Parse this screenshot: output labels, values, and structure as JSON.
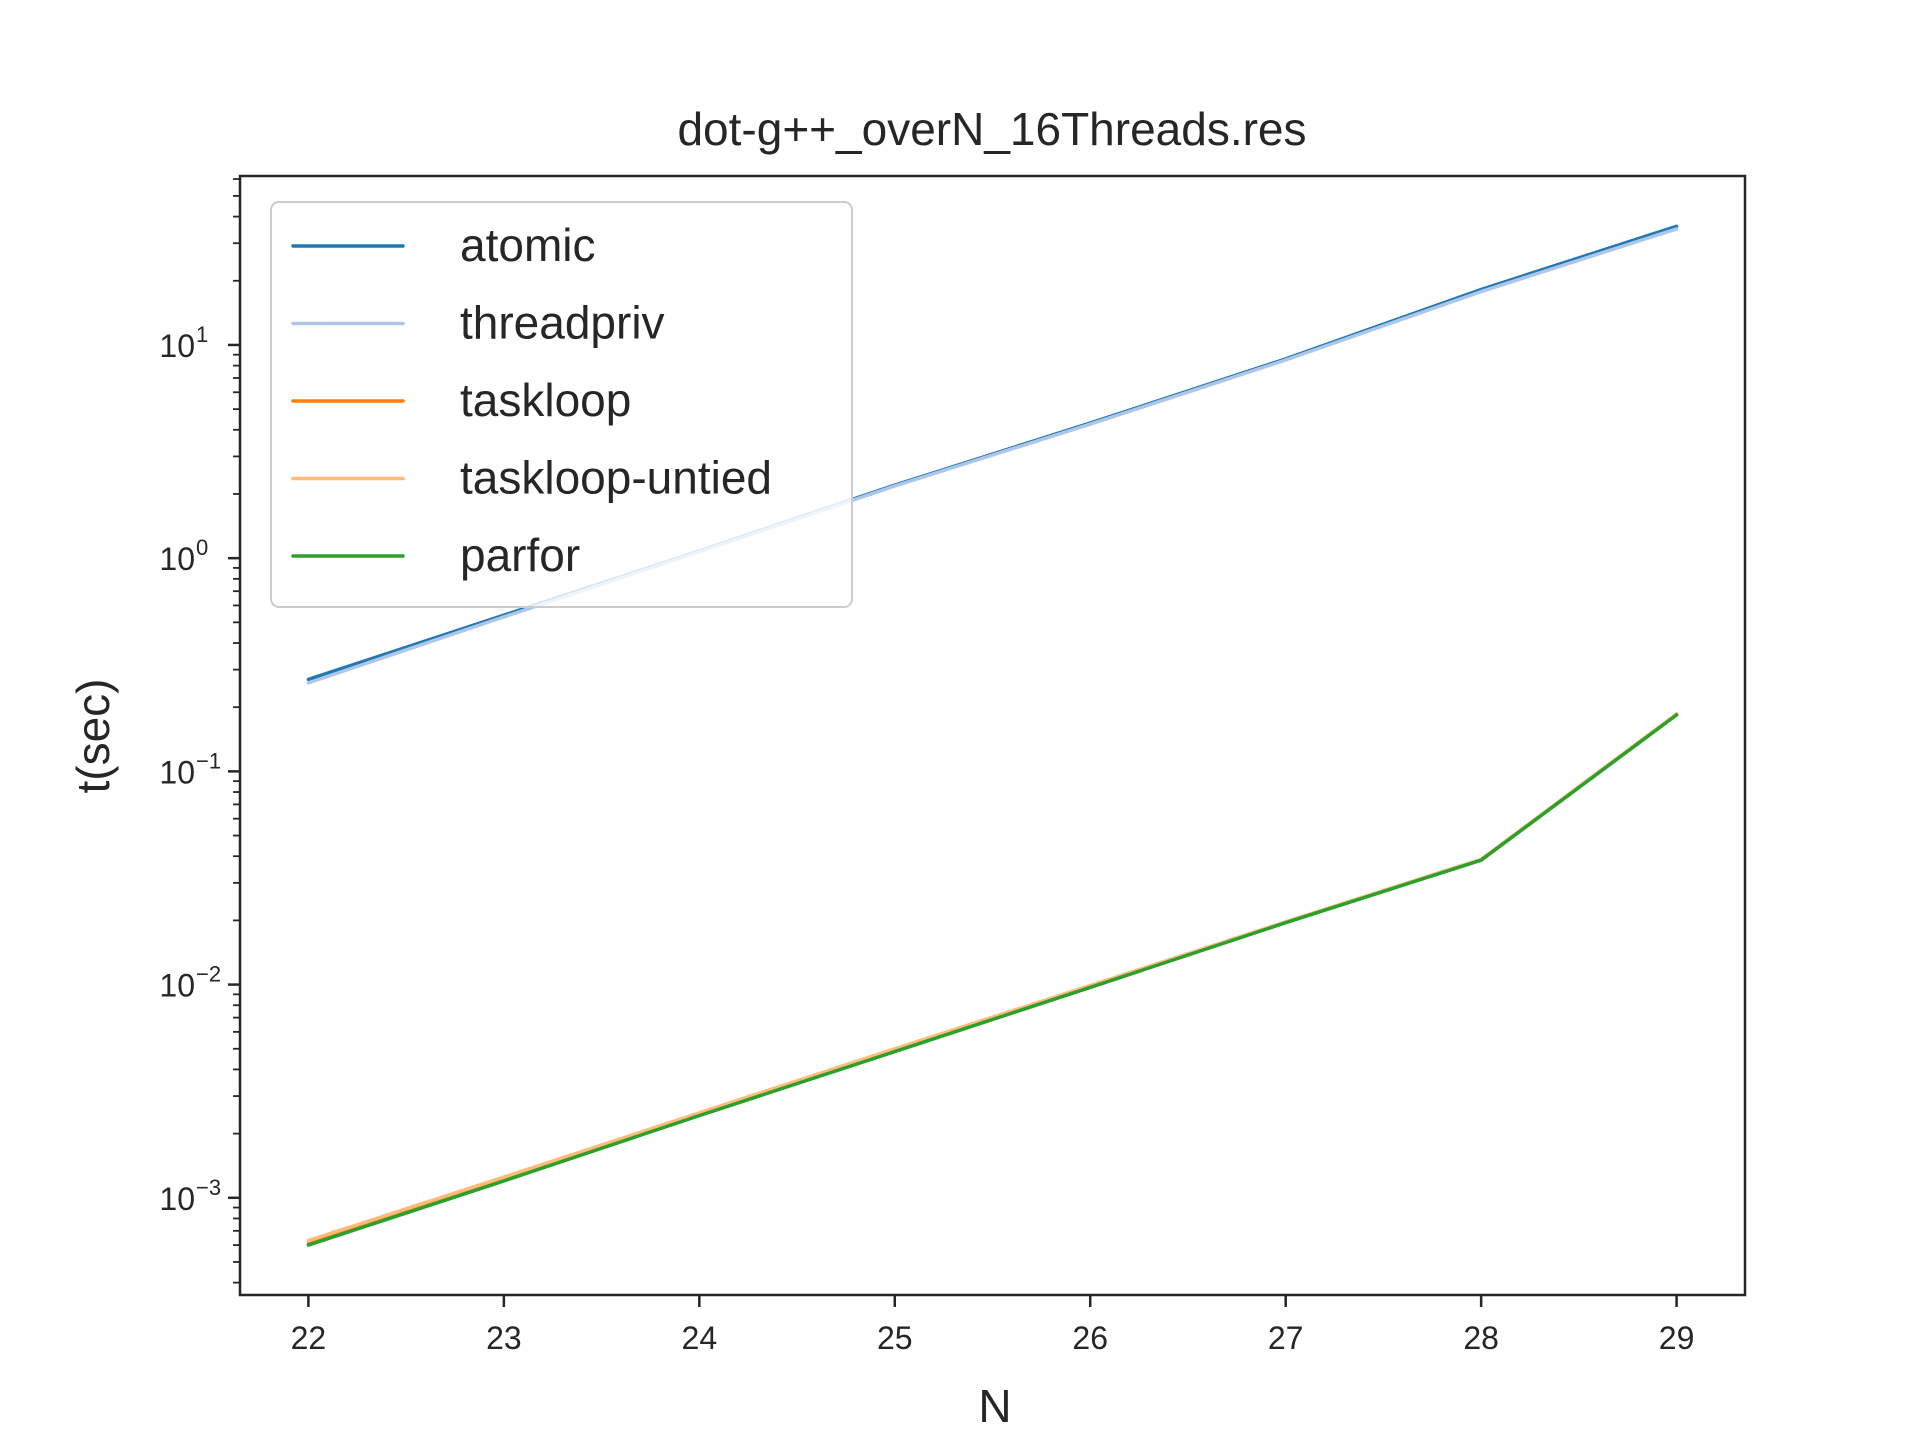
{
  "chart_data": {
    "type": "line",
    "title": "dot-g++_overN_16Threads.res",
    "xlabel": "N",
    "ylabel": "t(sec)",
    "x": [
      22,
      23,
      24,
      25,
      26,
      27,
      28,
      29
    ],
    "xlim": [
      21.65,
      29.35
    ],
    "ylim": [
      0.00035,
      62
    ],
    "yscale": "log",
    "x_ticks": [
      "22",
      "23",
      "24",
      "25",
      "26",
      "27",
      "28",
      "29"
    ],
    "y_ticks": [
      {
        "base": "10",
        "exp": "1",
        "value": 10
      },
      {
        "base": "10",
        "exp": "0",
        "value": 1
      },
      {
        "base": "10",
        "exp": "−1",
        "value": 0.1
      },
      {
        "base": "10",
        "exp": "−2",
        "value": 0.01
      },
      {
        "base": "10",
        "exp": "−3",
        "value": 0.001
      }
    ],
    "grid": false,
    "legend_position": "top-left",
    "series": [
      {
        "name": "atomic",
        "color": "#1f77b4",
        "values": [
          0.27,
          0.54,
          1.08,
          2.2,
          4.3,
          8.6,
          18.2,
          36.0
        ]
      },
      {
        "name": "threadpriv",
        "color": "#aec7e8",
        "values": [
          0.26,
          0.53,
          1.07,
          2.18,
          4.25,
          8.5,
          17.8,
          35.0
        ]
      },
      {
        "name": "taskloop",
        "color": "#ff7f0e",
        "values": [
          0.00061,
          0.00122,
          0.00245,
          0.0049,
          0.0098,
          0.0196,
          0.0385,
          0.185
        ]
      },
      {
        "name": "taskloop-untied",
        "color": "#ffbb78",
        "values": [
          0.00063,
          0.00125,
          0.0025,
          0.005,
          0.0099,
          0.0197,
          0.0387,
          0.186
        ]
      },
      {
        "name": "parfor",
        "color": "#2ca02c",
        "values": [
          0.0006,
          0.0012,
          0.00243,
          0.00485,
          0.0097,
          0.0195,
          0.0383,
          0.184
        ]
      }
    ]
  }
}
